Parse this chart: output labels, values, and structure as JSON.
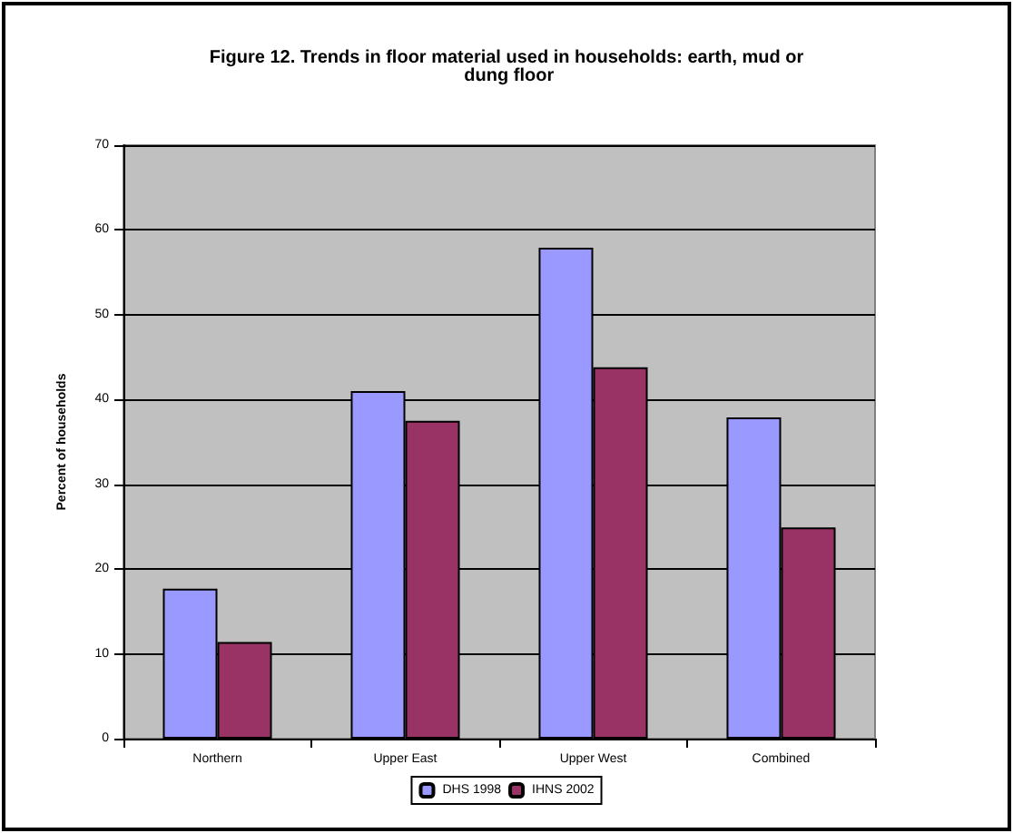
{
  "chart_data": {
    "type": "bar",
    "title": "Figure 12. Trends in floor material used in households: earth, mud or dung floor",
    "ylabel": "Percent of households",
    "categories": [
      "Northern",
      "Upper East",
      "Upper West",
      "Combined"
    ],
    "series": [
      {
        "name": "DHS 1998",
        "color": "#9999ff",
        "values": [
          17.7,
          41.0,
          57.9,
          37.9
        ]
      },
      {
        "name": "IHNS 2002",
        "color": "#993366",
        "values": [
          11.4,
          37.5,
          43.8,
          24.9
        ]
      }
    ],
    "ylim": [
      0,
      70
    ],
    "yticks": [
      0,
      10,
      20,
      30,
      40,
      50,
      60,
      70
    ],
    "grid": "y",
    "legend": "bottom"
  }
}
